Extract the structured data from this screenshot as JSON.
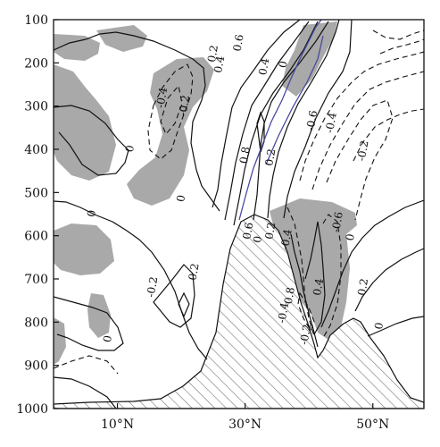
{
  "chart_data": {
    "type": "contour",
    "title": "",
    "xlabel": "",
    "ylabel": "",
    "x_axis": {
      "range_deg_N": [
        0,
        58
      ],
      "ticks": [
        10,
        30,
        50
      ],
      "tick_labels": [
        "10°N",
        "30°N",
        "50°N"
      ]
    },
    "y_axis": {
      "unit": "",
      "range": [
        1000,
        100
      ],
      "ticks": [
        100,
        200,
        300,
        400,
        500,
        600,
        700,
        800,
        900,
        1000
      ],
      "tick_labels": [
        "100",
        "200",
        "300",
        "400",
        "500",
        "600",
        "700",
        "800",
        "900",
        "1000"
      ]
    },
    "contour_labels": [
      {
        "text": "0.2",
        "lat": 25.5,
        "p": 180
      },
      {
        "text": "0.4",
        "lat": 26.5,
        "p": 205
      },
      {
        "text": "0.6",
        "lat": 29.5,
        "p": 155
      },
      {
        "text": "0.4",
        "lat": 33.5,
        "p": 210
      },
      {
        "text": "0",
        "lat": 36.5,
        "p": 205
      },
      {
        "text": "-0.4",
        "lat": 17.5,
        "p": 282
      },
      {
        "text": "-0.2",
        "lat": 21.0,
        "p": 300
      },
      {
        "text": "0",
        "lat": 12.5,
        "p": 400
      },
      {
        "text": "0.8",
        "lat": 30.5,
        "p": 415
      },
      {
        "text": "0.2",
        "lat": 34.5,
        "p": 420
      },
      {
        "text": "-0.6",
        "lat": 41.0,
        "p": 335
      },
      {
        "text": "-0.4",
        "lat": 44.0,
        "p": 340
      },
      {
        "text": "-0.2",
        "lat": 49.0,
        "p": 405
      },
      {
        "text": "0",
        "lat": 20.5,
        "p": 515
      },
      {
        "text": "0",
        "lat": 6.5,
        "p": 550
      },
      {
        "text": "0.6",
        "lat": 31.0,
        "p": 590
      },
      {
        "text": "0",
        "lat": 32.5,
        "p": 610
      },
      {
        "text": "0.2",
        "lat": 34.5,
        "p": 590
      },
      {
        "text": "-0.4",
        "lat": 37.0,
        "p": 610
      },
      {
        "text": "-0.6",
        "lat": 45.0,
        "p": 570
      },
      {
        "text": "0",
        "lat": 47.0,
        "p": 605
      },
      {
        "text": "0.2",
        "lat": 22.5,
        "p": 685
      },
      {
        "text": "-0.2",
        "lat": 16.0,
        "p": 720
      },
      {
        "text": "0.4",
        "lat": 42.0,
        "p": 720
      },
      {
        "text": "0.8",
        "lat": 37.5,
        "p": 740
      },
      {
        "text": "0.2",
        "lat": 49.0,
        "p": 720
      },
      {
        "text": "-0.4",
        "lat": 36.5,
        "p": 780
      },
      {
        "text": "-0.2",
        "lat": 40.0,
        "p": 830
      },
      {
        "text": "0",
        "lat": 9.0,
        "p": 840
      },
      {
        "text": "0",
        "lat": 51.5,
        "p": 810
      }
    ],
    "series": [
      {
        "style": "shaded",
        "note": "gray shaded significance regions"
      },
      {
        "style": "solid",
        "note": "positive / zero contours"
      },
      {
        "style": "dashed",
        "note": "negative contours"
      },
      {
        "style": "hatched",
        "note": "topography (terrain mask)"
      },
      {
        "style": "blue-line",
        "note": "jet axis line"
      }
    ],
    "colors": {
      "shade": "#a8a8a8",
      "contour": "#111111",
      "terrain_hatch": "#666666",
      "jet_line": "#4a4aa0"
    },
    "grid": false
  }
}
